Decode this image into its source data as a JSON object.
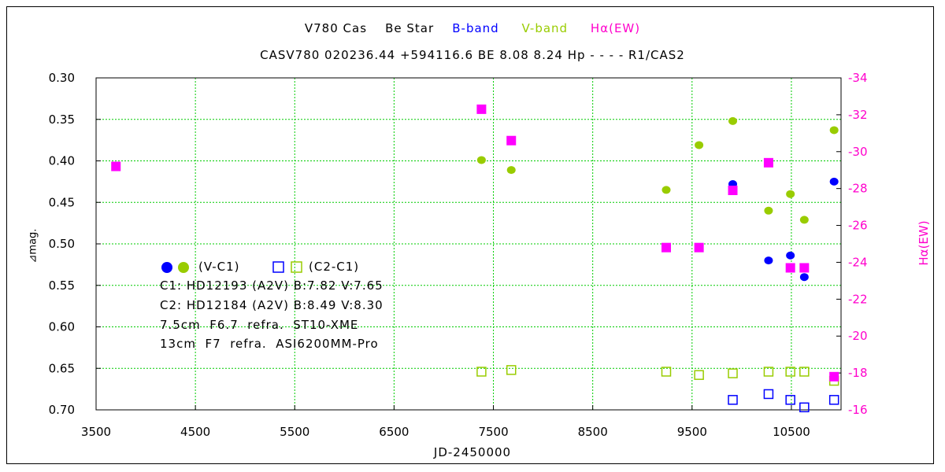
{
  "header": {
    "star": "V780 Cas",
    "type": "Be Star",
    "b_band": "B-band",
    "v_band": "V-band",
    "halpha": "Hα(EW)",
    "subtitle": "CASV780 020236.44 +594116.6 BE 8.08 8.24 Hp - - - - R1/CAS2"
  },
  "legend": {
    "vc1_label": "(V-C1)",
    "c2c1_label": "(C2-C1)"
  },
  "notes": [
    "C1: HD12193 (A2V) B:7.82 V:7.65",
    "C2: HD12184 (A2V) B:8.49 V:8.30",
    "7.5cm  F6.7  refra.  ST10-XME",
    "13cm  F7  refra.  ASI6200MM-Pro"
  ],
  "colors": {
    "b_band": "#0000ff",
    "v_band": "#99cc00",
    "halpha": "#ff00ff",
    "grid": "#00cc00"
  },
  "chart_data": {
    "type": "scatter",
    "xlabel": "JD-2450000",
    "ylabel": "⊿mag.",
    "y2label": "Hα(EW)",
    "xlim": [
      3500,
      11000
    ],
    "ylim": [
      0.7,
      0.3
    ],
    "y2lim": [
      -16,
      -34
    ],
    "grid": true,
    "x_ticks": [
      3500,
      4500,
      5500,
      6500,
      7500,
      8500,
      9500,
      10500
    ],
    "y_ticks": [
      "0.30",
      "0.35",
      "0.40",
      "0.45",
      "0.50",
      "0.55",
      "0.60",
      "0.65",
      "0.70"
    ],
    "y2_ticks": [
      "-34",
      "-32",
      "-30",
      "-28",
      "-26",
      "-24",
      "-22",
      "-20",
      "-18",
      "-16"
    ],
    "series": [
      {
        "name": "V-band (V-C1)",
        "marker": "circle",
        "color": "#99cc00",
        "axis": "left",
        "x": [
          7380,
          7680,
          9240,
          9570,
          9910,
          10270,
          10490,
          10630,
          10930
        ],
        "y": [
          0.399,
          0.411,
          0.435,
          0.381,
          0.352,
          0.46,
          0.44,
          0.471,
          0.363
        ]
      },
      {
        "name": "B-band (V-C1)",
        "marker": "circle",
        "color": "#0000ff",
        "axis": "left",
        "x": [
          9910,
          10270,
          10490,
          10630,
          10930
        ],
        "y": [
          0.428,
          0.52,
          0.514,
          0.54,
          0.425
        ]
      },
      {
        "name": "V-band (C2-C1)",
        "marker": "open-square",
        "color": "#99cc00",
        "axis": "left",
        "x": [
          7380,
          7680,
          9240,
          9570,
          9910,
          10270,
          10490,
          10630,
          10930
        ],
        "y": [
          0.654,
          0.652,
          0.654,
          0.658,
          0.656,
          0.654,
          0.654,
          0.654,
          0.665
        ]
      },
      {
        "name": "B-band (C2-C1)",
        "marker": "open-square",
        "color": "#0000ff",
        "axis": "left",
        "x": [
          9910,
          10270,
          10490,
          10630,
          10930
        ],
        "y": [
          0.688,
          0.681,
          0.688,
          0.697,
          0.688
        ]
      },
      {
        "name": "Hα(EW)",
        "marker": "filled-square",
        "color": "#ff00ff",
        "axis": "right",
        "x": [
          3700,
          7380,
          7680,
          9240,
          9570,
          9910,
          10270,
          10490,
          10630,
          10930
        ],
        "y": [
          -29.2,
          -32.3,
          -30.6,
          -24.8,
          -24.8,
          -27.9,
          -29.4,
          -23.7,
          -23.7,
          -17.8
        ]
      }
    ]
  }
}
